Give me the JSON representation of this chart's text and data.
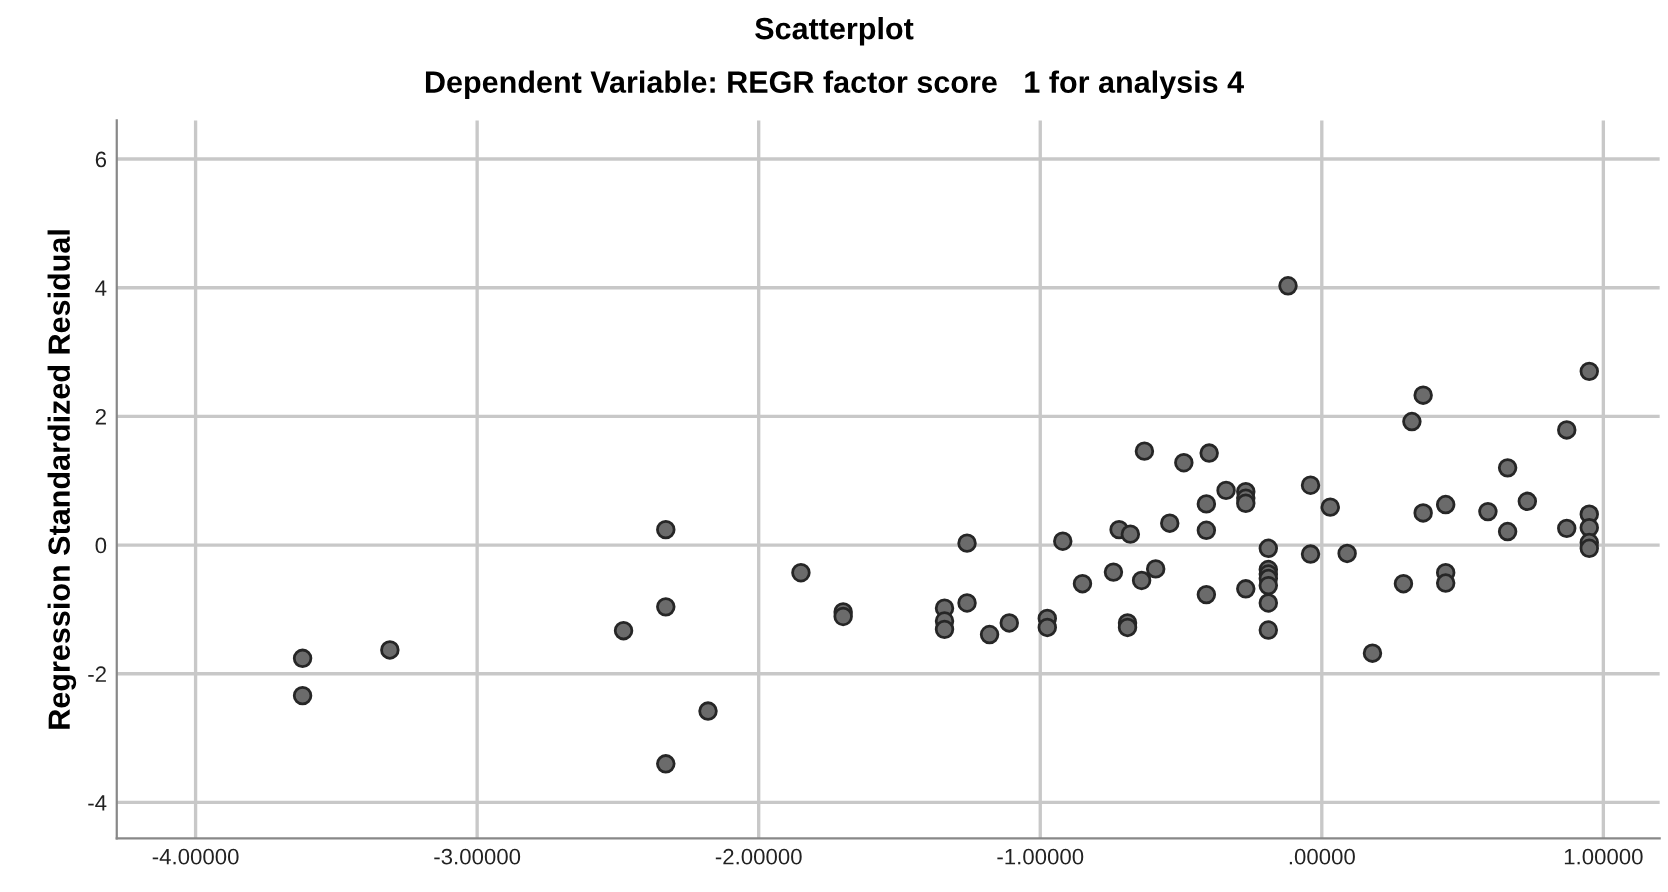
{
  "chart_data": {
    "type": "scatter",
    "title": "Scatterplot",
    "subtitle": "Dependent Variable: REGR factor score   1 for analysis 4",
    "ylabel": "Regression Standardized Residual",
    "xlim": [
      -4.28,
      1.2
    ],
    "ylim": [
      -4.56,
      6.6
    ],
    "xticks": [
      {
        "value": -4,
        "label": "-4.00000"
      },
      {
        "value": -3,
        "label": "-3.00000"
      },
      {
        "value": -2,
        "label": "-2.00000"
      },
      {
        "value": -1,
        "label": "-1.00000"
      },
      {
        "value": 0,
        "label": ".00000"
      },
      {
        "value": 1,
        "label": "1.00000"
      }
    ],
    "yticks": [
      -4,
      -2,
      0,
      2,
      4,
      6
    ],
    "grid": true,
    "marker": "circle",
    "series": [
      {
        "color": "#6b6b6b",
        "x": [
          -3.62,
          -3.62,
          -3.31,
          -2.48,
          -2.33,
          -2.33,
          -2.33,
          -2.18,
          -1.85,
          -1.7,
          -1.7,
          -1.34,
          -1.34,
          -1.34,
          -1.26,
          -1.26,
          -1.18,
          -1.11,
          -0.975,
          -0.975,
          -0.92,
          -0.85,
          -0.74,
          -0.72,
          -0.68,
          -0.69,
          -0.69,
          -0.64,
          -0.59,
          -0.54,
          -0.41,
          -0.41,
          -0.41,
          -0.34,
          -0.27,
          -0.27,
          -0.27,
          -0.27,
          -0.19,
          -0.19,
          -0.19,
          -0.19,
          -0.19,
          -0.19,
          -0.19,
          -0.04,
          -0.04,
          0.03,
          0.09,
          0.18,
          0.29,
          0.36,
          0.44,
          0.44,
          0.44,
          0.59,
          0.66,
          0.66,
          0.73,
          0.87,
          0.95,
          0.95,
          0.95,
          0.95,
          -0.12,
          -0.63,
          -0.49,
          -0.4,
          0.32,
          0.36,
          0.87,
          0.95
        ],
        "values": [
          -1.76,
          -2.34,
          -1.63,
          -1.33,
          0.24,
          -0.96,
          -3.4,
          -2.58,
          -0.43,
          -1.04,
          -1.11,
          -0.98,
          -1.18,
          -1.31,
          0.03,
          -0.9,
          -1.39,
          -1.21,
          -1.14,
          -1.28,
          0.06,
          -0.6,
          -0.42,
          0.24,
          0.17,
          -1.21,
          -1.28,
          -0.55,
          -0.37,
          0.34,
          0.64,
          0.23,
          -0.77,
          0.85,
          0.83,
          0.73,
          0.65,
          -0.68,
          -0.05,
          -0.38,
          -0.45,
          -0.52,
          -0.63,
          -0.9,
          -1.32,
          0.93,
          -0.14,
          0.59,
          -0.13,
          -1.68,
          -0.6,
          0.5,
          0.63,
          -0.43,
          -0.59,
          0.52,
          1.2,
          0.21,
          0.68,
          0.26,
          0.48,
          0.27,
          0.04,
          -0.05,
          4.03,
          1.46,
          1.28,
          1.43,
          1.92,
          2.33,
          1.79,
          2.7
        ]
      }
    ]
  }
}
